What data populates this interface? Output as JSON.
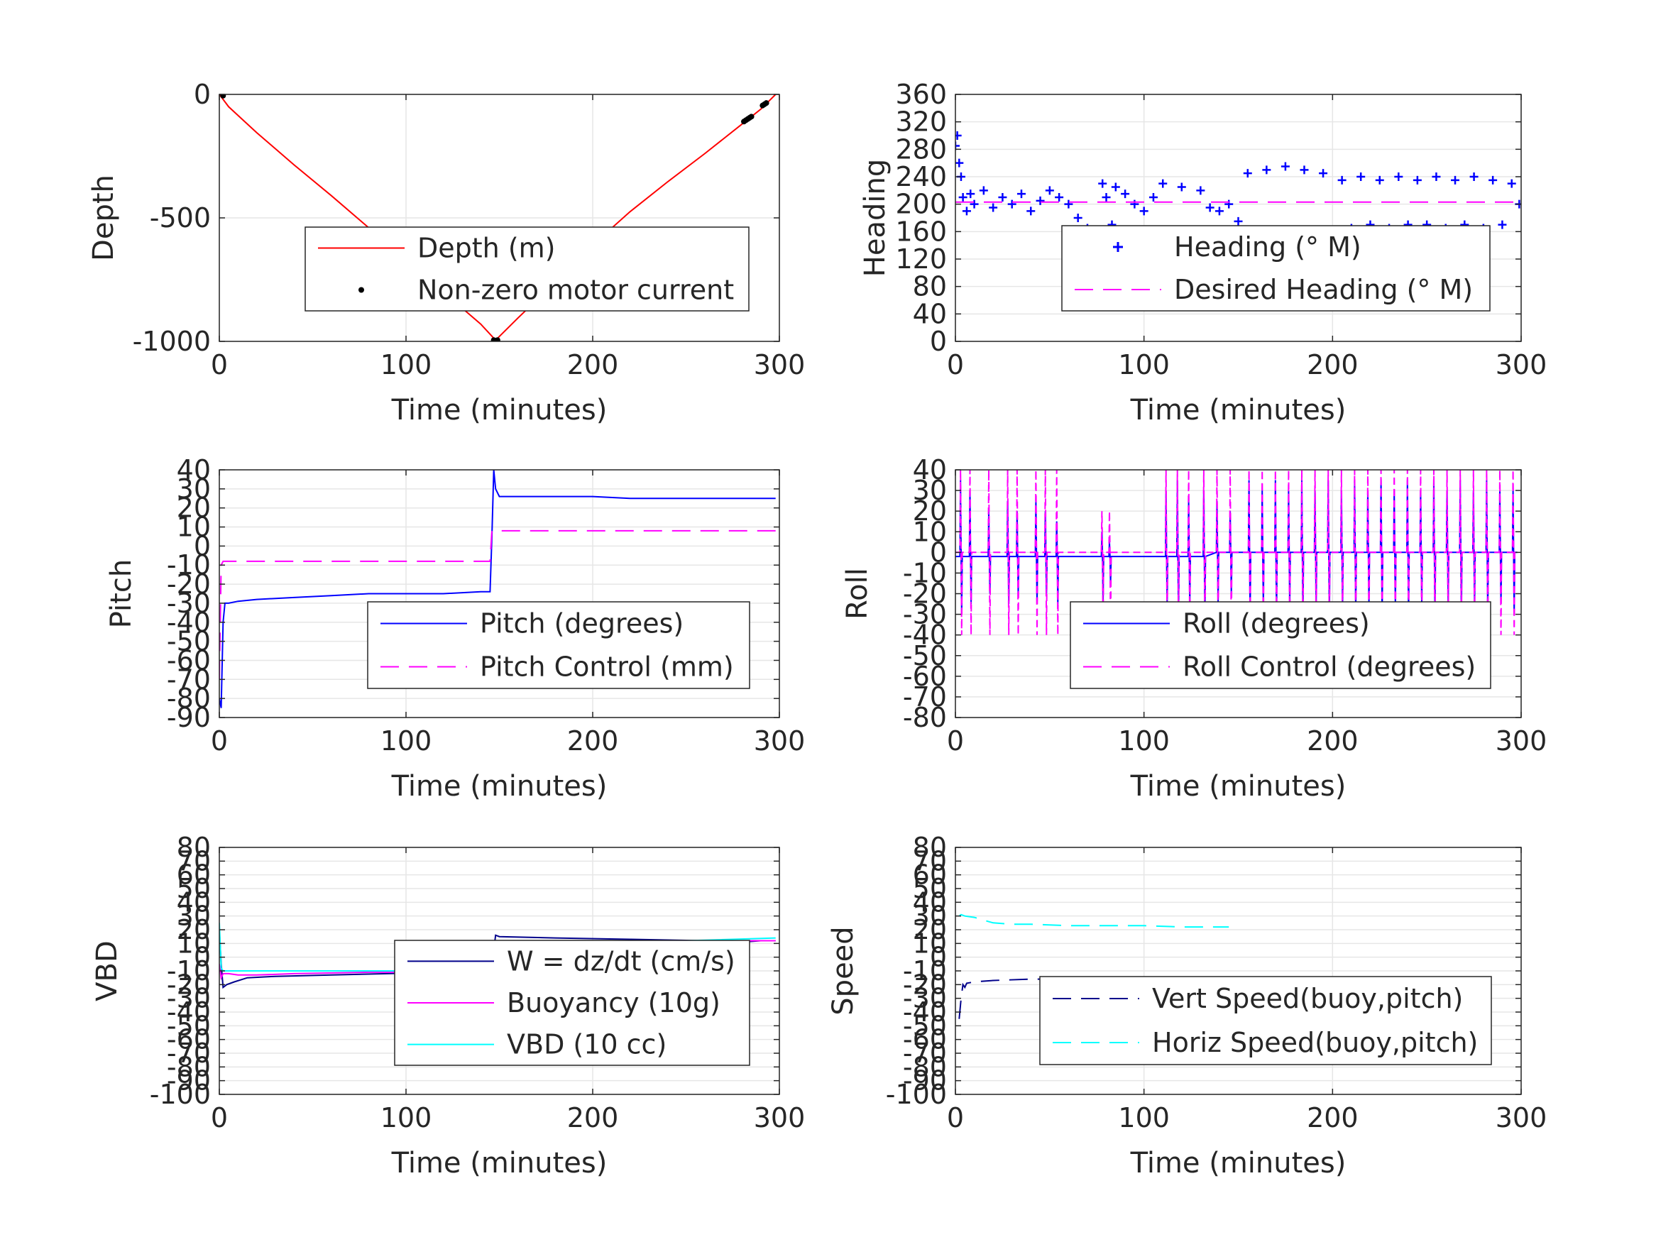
{
  "figure": {
    "background": "#ffffff",
    "axis_color": "#262626",
    "grid_color": "#e6e6e6"
  },
  "chart_data": [
    {
      "type": "line",
      "panel": "top-left",
      "xlabel": "Time (minutes)",
      "ylabel": "Depth",
      "xlim": [
        0,
        300
      ],
      "ylim": [
        -1000,
        0
      ],
      "xticks": [
        0,
        100,
        200,
        300
      ],
      "yticks": [
        -1000,
        -500,
        0
      ],
      "grid": true,
      "legend_position": "lower-right",
      "series": [
        {
          "name": "Depth (m)",
          "style": "solid",
          "color": "#ff0000",
          "marker": "none",
          "x": [
            0,
            5,
            10,
            20,
            40,
            60,
            80,
            100,
            120,
            140,
            148,
            160,
            180,
            200,
            220,
            240,
            260,
            280,
            290,
            298
          ],
          "y": [
            0,
            -50,
            -85,
            -155,
            -285,
            -410,
            -540,
            -670,
            -800,
            -930,
            -995,
            -905,
            -760,
            -610,
            -475,
            -355,
            -240,
            -120,
            -60,
            0
          ]
        },
        {
          "name": "Non-zero motor current",
          "style": "none",
          "color": "#000000",
          "marker": "dot",
          "x": [
            2,
            147,
            148,
            149,
            281,
            282,
            283,
            284,
            285,
            291,
            292,
            293
          ],
          "y": [
            -5,
            -995,
            -998,
            -995,
            -110,
            -105,
            -100,
            -95,
            -90,
            -45,
            -40,
            -35
          ]
        }
      ]
    },
    {
      "type": "scatter",
      "panel": "top-right",
      "xlabel": "Time (minutes)",
      "ylabel": "Heading",
      "xlim": [
        0,
        300
      ],
      "ylim": [
        0,
        360
      ],
      "xticks": [
        0,
        100,
        200,
        300
      ],
      "yticks": [
        0,
        40,
        80,
        120,
        160,
        200,
        240,
        280,
        320,
        360
      ],
      "grid": true,
      "legend_position": "lower-right",
      "series": [
        {
          "name": "Heading (° M)",
          "style": "none",
          "color": "#0000ff",
          "marker": "plus",
          "x": [
            0,
            1,
            2,
            3,
            4,
            6,
            8,
            10,
            15,
            20,
            25,
            30,
            35,
            40,
            45,
            50,
            55,
            60,
            65,
            70,
            75,
            78,
            80,
            83,
            85,
            90,
            95,
            100,
            105,
            110,
            115,
            118,
            120,
            125,
            130,
            135,
            140,
            145,
            150,
            155,
            160,
            165,
            170,
            175,
            180,
            185,
            190,
            195,
            200,
            205,
            210,
            215,
            220,
            225,
            230,
            235,
            240,
            245,
            250,
            255,
            260,
            265,
            270,
            275,
            280,
            285,
            290,
            295,
            299
          ],
          "y": [
            285,
            300,
            260,
            240,
            210,
            190,
            215,
            200,
            220,
            195,
            210,
            200,
            215,
            190,
            205,
            220,
            210,
            200,
            180,
            165,
            160,
            230,
            210,
            170,
            225,
            215,
            200,
            190,
            210,
            230,
            150,
            140,
            225,
            130,
            220,
            195,
            190,
            200,
            175,
            245,
            140,
            250,
            130,
            255,
            135,
            250,
            140,
            245,
            160,
            235,
            165,
            240,
            170,
            235,
            165,
            240,
            170,
            235,
            170,
            240,
            165,
            235,
            170,
            240,
            165,
            235,
            170,
            230,
            200
          ]
        },
        {
          "name": "Desired Heading (° M)",
          "style": "dashed",
          "color": "#ff00ff",
          "marker": "none",
          "x": [
            0,
            299
          ],
          "y": [
            203,
            203
          ]
        }
      ]
    },
    {
      "type": "line",
      "panel": "middle-left",
      "xlabel": "Time (minutes)",
      "ylabel": "Pitch",
      "xlim": [
        0,
        300
      ],
      "ylim": [
        -90,
        40
      ],
      "xticks": [
        0,
        100,
        200,
        300
      ],
      "yticks": [
        -90,
        -80,
        -70,
        -60,
        -50,
        -40,
        -30,
        -20,
        -10,
        0,
        10,
        20,
        30,
        40
      ],
      "grid": true,
      "legend_position": "lower-right",
      "series": [
        {
          "name": "Pitch (degrees)",
          "style": "solid",
          "color": "#0000ff",
          "marker": "none",
          "x": [
            0,
            1,
            2,
            3,
            5,
            10,
            20,
            40,
            60,
            80,
            100,
            120,
            140,
            145,
            146,
            147,
            148,
            150,
            160,
            180,
            200,
            220,
            240,
            260,
            280,
            298
          ],
          "y": [
            -80,
            -85,
            -40,
            -30,
            -30,
            -29,
            -28,
            -27,
            -26,
            -25,
            -25,
            -25,
            -24,
            -24,
            5,
            40,
            30,
            26,
            26,
            26,
            26,
            25,
            25,
            25,
            25,
            25
          ]
        },
        {
          "name": "Pitch Control (mm)",
          "style": "dashed",
          "color": "#ff00ff",
          "marker": "none",
          "x": [
            0,
            1,
            2,
            3,
            5,
            145,
            146,
            147,
            150,
            298
          ],
          "y": [
            -70,
            -10,
            -8,
            -8,
            -8,
            -8,
            8,
            8,
            8,
            8
          ]
        }
      ]
    },
    {
      "type": "line",
      "panel": "middle-right",
      "xlabel": "Time (minutes)",
      "ylabel": "Roll",
      "xlim": [
        0,
        300
      ],
      "ylim": [
        -80,
        40
      ],
      "xticks": [
        0,
        100,
        200,
        300
      ],
      "yticks": [
        -80,
        -70,
        -60,
        -50,
        -40,
        -30,
        -20,
        -10,
        0,
        10,
        20,
        30,
        40
      ],
      "grid": true,
      "legend_position": "lower-right",
      "series": [
        {
          "name": "Roll (degrees)",
          "style": "solid",
          "color": "#0000ff",
          "marker": "none",
          "spikes": [
            3,
            8,
            18,
            28,
            33,
            43,
            48,
            54,
            78,
            82,
            112,
            118,
            124,
            132,
            139,
            146,
            156,
            163,
            170,
            177,
            184,
            191,
            198,
            205,
            212,
            219,
            226,
            233,
            240,
            247,
            254,
            261,
            268,
            275,
            282,
            289,
            296
          ],
          "baseline": [
            -2,
            -2,
            -2,
            -2,
            -2,
            -2,
            -2,
            -2,
            -2,
            -2,
            -2,
            -2,
            -2,
            -2,
            0,
            0,
            0,
            0,
            0,
            0,
            0,
            0,
            0,
            0,
            0,
            0,
            0,
            0,
            0,
            0,
            0,
            0,
            0,
            0,
            0,
            0,
            0
          ],
          "peak_high": [
            35,
            30,
            20,
            25,
            20,
            25,
            20,
            15,
            10,
            5,
            30,
            35,
            25,
            30,
            25,
            20,
            35,
            30,
            35,
            30,
            35,
            30,
            35,
            30,
            35,
            30,
            35,
            30,
            35,
            30,
            35,
            30,
            35,
            30,
            35,
            30,
            30
          ],
          "peak_low": [
            -30,
            -25,
            -20,
            -25,
            -20,
            -25,
            -20,
            -25,
            -25,
            -15,
            -25,
            -30,
            -25,
            -30,
            -25,
            -20,
            -30,
            -25,
            -30,
            -25,
            -30,
            -25,
            -30,
            -25,
            -30,
            -25,
            -30,
            -25,
            -30,
            -25,
            -30,
            -25,
            -30,
            -25,
            -30,
            -25,
            -30
          ]
        },
        {
          "name": "Roll Control (degrees)",
          "style": "dashed",
          "color": "#ff00ff",
          "marker": "none",
          "spikes": [
            3,
            8,
            18,
            28,
            33,
            43,
            48,
            54,
            78,
            82,
            112,
            118,
            124,
            132,
            139,
            146,
            156,
            163,
            170,
            177,
            184,
            191,
            198,
            205,
            212,
            219,
            226,
            233,
            240,
            247,
            254,
            261,
            268,
            275,
            282,
            289,
            296
          ],
          "baseline": [
            0,
            0,
            0,
            0,
            0,
            0,
            0,
            0,
            0,
            0,
            0,
            0,
            0,
            0,
            0,
            0,
            0,
            0,
            0,
            0,
            0,
            0,
            0,
            0,
            0,
            0,
            0,
            0,
            0,
            0,
            0,
            0,
            0,
            0,
            0,
            0,
            0
          ],
          "peak_high": [
            40,
            40,
            40,
            40,
            40,
            40,
            40,
            40,
            20,
            20,
            40,
            40,
            40,
            40,
            40,
            40,
            40,
            40,
            40,
            40,
            40,
            40,
            40,
            40,
            40,
            40,
            40,
            40,
            40,
            40,
            40,
            40,
            40,
            40,
            40,
            40,
            40
          ],
          "peak_low": [
            -40,
            -40,
            -40,
            -40,
            -40,
            -40,
            -40,
            -40,
            -40,
            -40,
            -40,
            -40,
            -40,
            -40,
            -40,
            -40,
            -40,
            -40,
            -40,
            -40,
            -40,
            -40,
            -40,
            -40,
            -40,
            -40,
            -40,
            -40,
            -40,
            -40,
            -40,
            -40,
            -40,
            -40,
            -40,
            -40,
            -40
          ]
        }
      ]
    },
    {
      "type": "line",
      "panel": "bottom-left",
      "xlabel": "Time (minutes)",
      "ylabel": "VBD",
      "xlim": [
        0,
        300
      ],
      "ylim": [
        -100,
        80
      ],
      "xticks": [
        0,
        100,
        200,
        300
      ],
      "yticks": [
        -100,
        -90,
        -80,
        -70,
        -60,
        -50,
        -40,
        -30,
        -20,
        -10,
        0,
        10,
        20,
        30,
        40,
        50,
        60,
        70,
        80
      ],
      "ytick_labels": [
        "-100",
        "-90",
        "-80",
        "-70",
        "-60",
        "-50",
        "-40",
        "-30",
        "-20",
        "-10",
        "0",
        "10",
        "20",
        "30",
        "40",
        "50",
        "60",
        "70",
        "80"
      ],
      "grid": true,
      "legend_position": "lower-right",
      "series": [
        {
          "name": "W = dz/dt (cm/s)",
          "style": "solid",
          "color": "#00008b",
          "marker": "none",
          "x": [
            0,
            1,
            2,
            4,
            8,
            15,
            30,
            60,
            90,
            120,
            140,
            146,
            147,
            148,
            150,
            180,
            220,
            260,
            280,
            290,
            298
          ],
          "y": [
            20,
            -5,
            -22,
            -20,
            -18,
            -15,
            -14,
            -13,
            -12,
            -11,
            -10,
            -10,
            5,
            16,
            15,
            14,
            13,
            12,
            11,
            12,
            12
          ]
        },
        {
          "name": "Buoyancy (10g)",
          "style": "solid",
          "color": "#ff00ff",
          "marker": "none",
          "x": [
            0,
            1,
            2,
            5,
            10,
            20,
            40,
            80,
            120,
            146,
            147,
            150,
            200,
            250,
            298
          ],
          "y": [
            -5,
            -15,
            -12,
            -12,
            -13,
            -13,
            -12,
            -11,
            -11,
            -10,
            12,
            12,
            12,
            12,
            12
          ]
        },
        {
          "name": "VBD (10 cc)",
          "style": "solid",
          "color": "#00ffff",
          "marker": "none",
          "x": [
            0,
            1,
            2,
            5,
            10,
            40,
            80,
            120,
            146,
            147,
            150,
            200,
            250,
            298
          ],
          "y": [
            25,
            -8,
            -10,
            -10,
            -10,
            -10,
            -10,
            -10,
            -10,
            12,
            12,
            12,
            12,
            14
          ]
        }
      ]
    },
    {
      "type": "line",
      "panel": "bottom-right",
      "xlabel": "Time (minutes)",
      "ylabel": "Speed",
      "xlim": [
        0,
        300
      ],
      "ylim": [
        -100,
        80
      ],
      "xticks": [
        0,
        100,
        200,
        300
      ],
      "yticks": [
        -100,
        -90,
        -80,
        -70,
        -60,
        -50,
        -40,
        -30,
        -20,
        -10,
        0,
        10,
        20,
        30,
        40,
        50,
        60,
        70,
        80
      ],
      "ytick_labels": [
        "-100",
        "-90",
        "-80",
        "-70",
        "-60",
        "-50",
        "-40",
        "-30",
        "-20",
        "-10",
        "0",
        "10",
        "20",
        "30",
        "40",
        "50",
        "60",
        "70",
        "80"
      ],
      "grid": true,
      "legend_position": "lower-right",
      "series": [
        {
          "name": "Vert Speed(buoy,pitch)",
          "style": "dashed",
          "color": "#00008b",
          "marker": "none",
          "x": [
            2,
            3,
            4,
            5,
            6,
            10,
            20,
            40,
            60,
            80,
            100,
            120,
            135,
            145
          ],
          "y": [
            -45,
            -30,
            -20,
            -22,
            -19,
            -18,
            -17,
            -16,
            -16,
            -16,
            -15,
            -15,
            -15,
            -15
          ]
        },
        {
          "name": "Horiz Speed(buoy,pitch)",
          "style": "dashed",
          "color": "#00ffff",
          "marker": "none",
          "x": [
            2,
            3,
            5,
            10,
            15,
            20,
            30,
            40,
            60,
            80,
            100,
            120,
            145
          ],
          "y": [
            30,
            31,
            30,
            29,
            27,
            25,
            24,
            24,
            23,
            23,
            23,
            22,
            22
          ]
        }
      ]
    }
  ]
}
